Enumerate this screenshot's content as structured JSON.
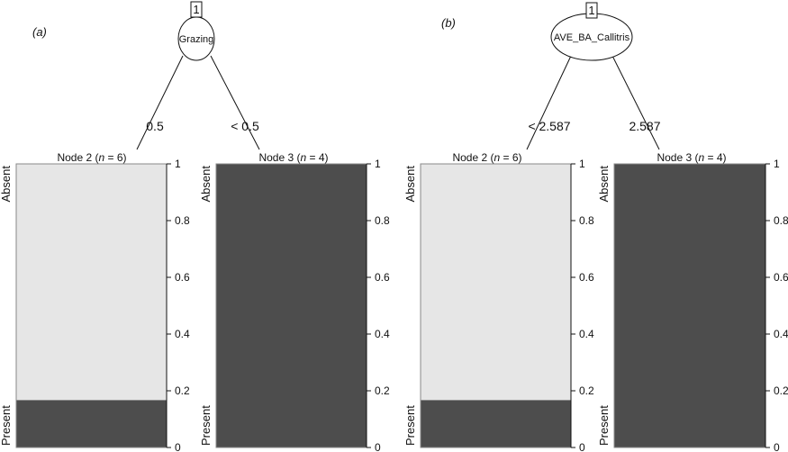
{
  "chart_data": [
    {
      "type": "bar",
      "panel_label": "(a)",
      "root": {
        "id": "1",
        "variable": "Grazing"
      },
      "edges": [
        {
          "label": "0.5"
        },
        {
          "label": "< 0.5"
        }
      ],
      "yticks": [
        0,
        0.2,
        0.4,
        0.6,
        0.8,
        1
      ],
      "ylim": [
        0,
        1
      ],
      "class_labels": {
        "top": "Absent",
        "bottom": "Present"
      },
      "colors": {
        "Absent": "#e6e6e6",
        "Present": "#4d4d4d"
      },
      "leaves": [
        {
          "title": "Node 2 (n = 6)",
          "n": 6,
          "present": 0.167,
          "absent": 0.833
        },
        {
          "title": "Node 3 (n = 4)",
          "n": 4,
          "present": 1.0,
          "absent": 0.0
        }
      ]
    },
    {
      "type": "bar",
      "panel_label": "(b)",
      "root": {
        "id": "1",
        "variable": "AVE_BA_Callitris"
      },
      "edges": [
        {
          "label": "< 2.587"
        },
        {
          "label": "2.587"
        }
      ],
      "yticks": [
        0,
        0.2,
        0.4,
        0.6,
        0.8,
        1
      ],
      "ylim": [
        0,
        1
      ],
      "class_labels": {
        "top": "Absent",
        "bottom": "Present"
      },
      "colors": {
        "Absent": "#e6e6e6",
        "Present": "#4d4d4d"
      },
      "leaves": [
        {
          "title": "Node 2 (n = 6)",
          "n": 6,
          "present": 0.167,
          "absent": 0.833
        },
        {
          "title": "Node 3 (n = 4)",
          "n": 4,
          "present": 1.0,
          "absent": 0.0
        }
      ]
    }
  ]
}
